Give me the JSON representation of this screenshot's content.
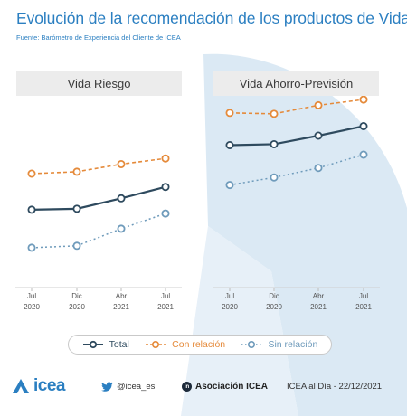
{
  "title": "Evolución de la recomendación de los productos de Vida",
  "subtitle": "Fuente: Barómetro de Experiencia del Cliente de ICEA",
  "colors": {
    "accent": "#2b7fc1",
    "total": "#2e4a5e",
    "con_relacion": "#e58a3a",
    "sin_relacion": "#6f9bbb",
    "panel_header_bg": "#ececec"
  },
  "chart_data": [
    {
      "type": "line",
      "title": "Vida Riesgo",
      "categories": [
        [
          "Jul",
          "2020"
        ],
        [
          "Dic",
          "2020"
        ],
        [
          "Abr",
          "2021"
        ],
        [
          "Jul",
          "2021"
        ]
      ],
      "series": [
        {
          "name": "Total",
          "values": [
            41,
            41.5,
            47,
            53
          ],
          "style": "solid"
        },
        {
          "name": "Con relación",
          "values": [
            60,
            61,
            65,
            68
          ],
          "style": "dashed"
        },
        {
          "name": "Sin relación",
          "values": [
            21,
            22,
            31,
            39
          ],
          "style": "dotted"
        }
      ],
      "ylim": [
        0,
        100
      ],
      "grid": false
    },
    {
      "type": "line",
      "title": "Vida Ahorro-Previsión",
      "categories": [
        [
          "Jul",
          "2020"
        ],
        [
          "Dic",
          "2020"
        ],
        [
          "Abr",
          "2021"
        ],
        [
          "Jul",
          "2021"
        ]
      ],
      "series": [
        {
          "name": "Total",
          "values": [
            75,
            75.5,
            80,
            85
          ],
          "style": "solid"
        },
        {
          "name": "Con relación",
          "values": [
            92,
            91.5,
            96,
            99
          ],
          "style": "dashed"
        },
        {
          "name": "Sin relación",
          "values": [
            54,
            58,
            63,
            70
          ],
          "style": "dotted"
        }
      ],
      "ylim": [
        0,
        100
      ],
      "grid": false
    }
  ],
  "legend": {
    "placement": "bottom",
    "items": [
      "Total",
      "Con relación",
      "Sin relación"
    ]
  },
  "footer": {
    "logo_text": "icea",
    "twitter": "@icea_es",
    "linkedin_badge": "in",
    "linkedin": "Asociación ICEA",
    "date": "ICEA al Día - 22/12/2021"
  }
}
